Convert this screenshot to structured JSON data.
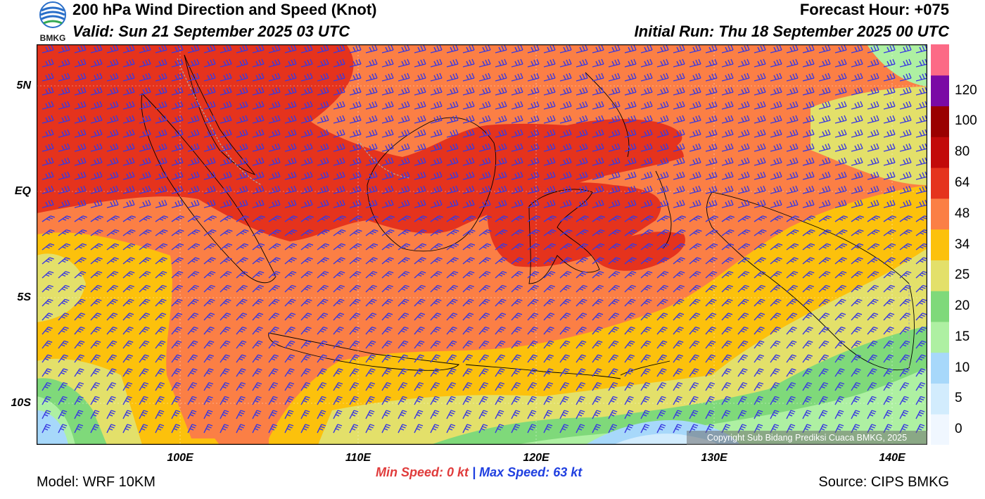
{
  "header": {
    "title": "200 hPa Wind Direction and Speed (Knot)",
    "valid": "Valid: Sun 21 September 2025 03 UTC",
    "forecast_hour": "Forecast Hour: +075",
    "initial_run": "Initial Run: Thu 18 September 2025 00 UTC",
    "logo_text": "BMKG"
  },
  "map": {
    "lat_labels": [
      "5N",
      "EQ",
      "5S",
      "10S"
    ],
    "lon_labels": [
      "100E",
      "110E",
      "120E",
      "130E",
      "140E"
    ],
    "copyright": "Copyright Sub Bidang Prediksi Cuaca BMKG, 2025",
    "barb_color": "#3a3ae0",
    "coastline_color": "#000000"
  },
  "colorbar": {
    "labels": [
      "0",
      "5",
      "10",
      "15",
      "20",
      "25",
      "34",
      "48",
      "64",
      "80",
      "100",
      "120"
    ],
    "colors": [
      "#f0f7ff",
      "#d2ecfd",
      "#a7d8fa",
      "#aef0a2",
      "#7fd97a",
      "#e3e06a",
      "#fcc10c",
      "#fb7f45",
      "#e5331d",
      "#c20a0a",
      "#9a0000",
      "#7a0aa5",
      "#fc6a86"
    ]
  },
  "stats": {
    "min_label": "Min Speed:",
    "min_value": "0 kt",
    "separator": "|",
    "max_label": "Max Speed:",
    "max_value": "63 kt"
  },
  "footer": {
    "model": "Model: WRF 10KM",
    "source": "Source: CIPS BMKG"
  }
}
